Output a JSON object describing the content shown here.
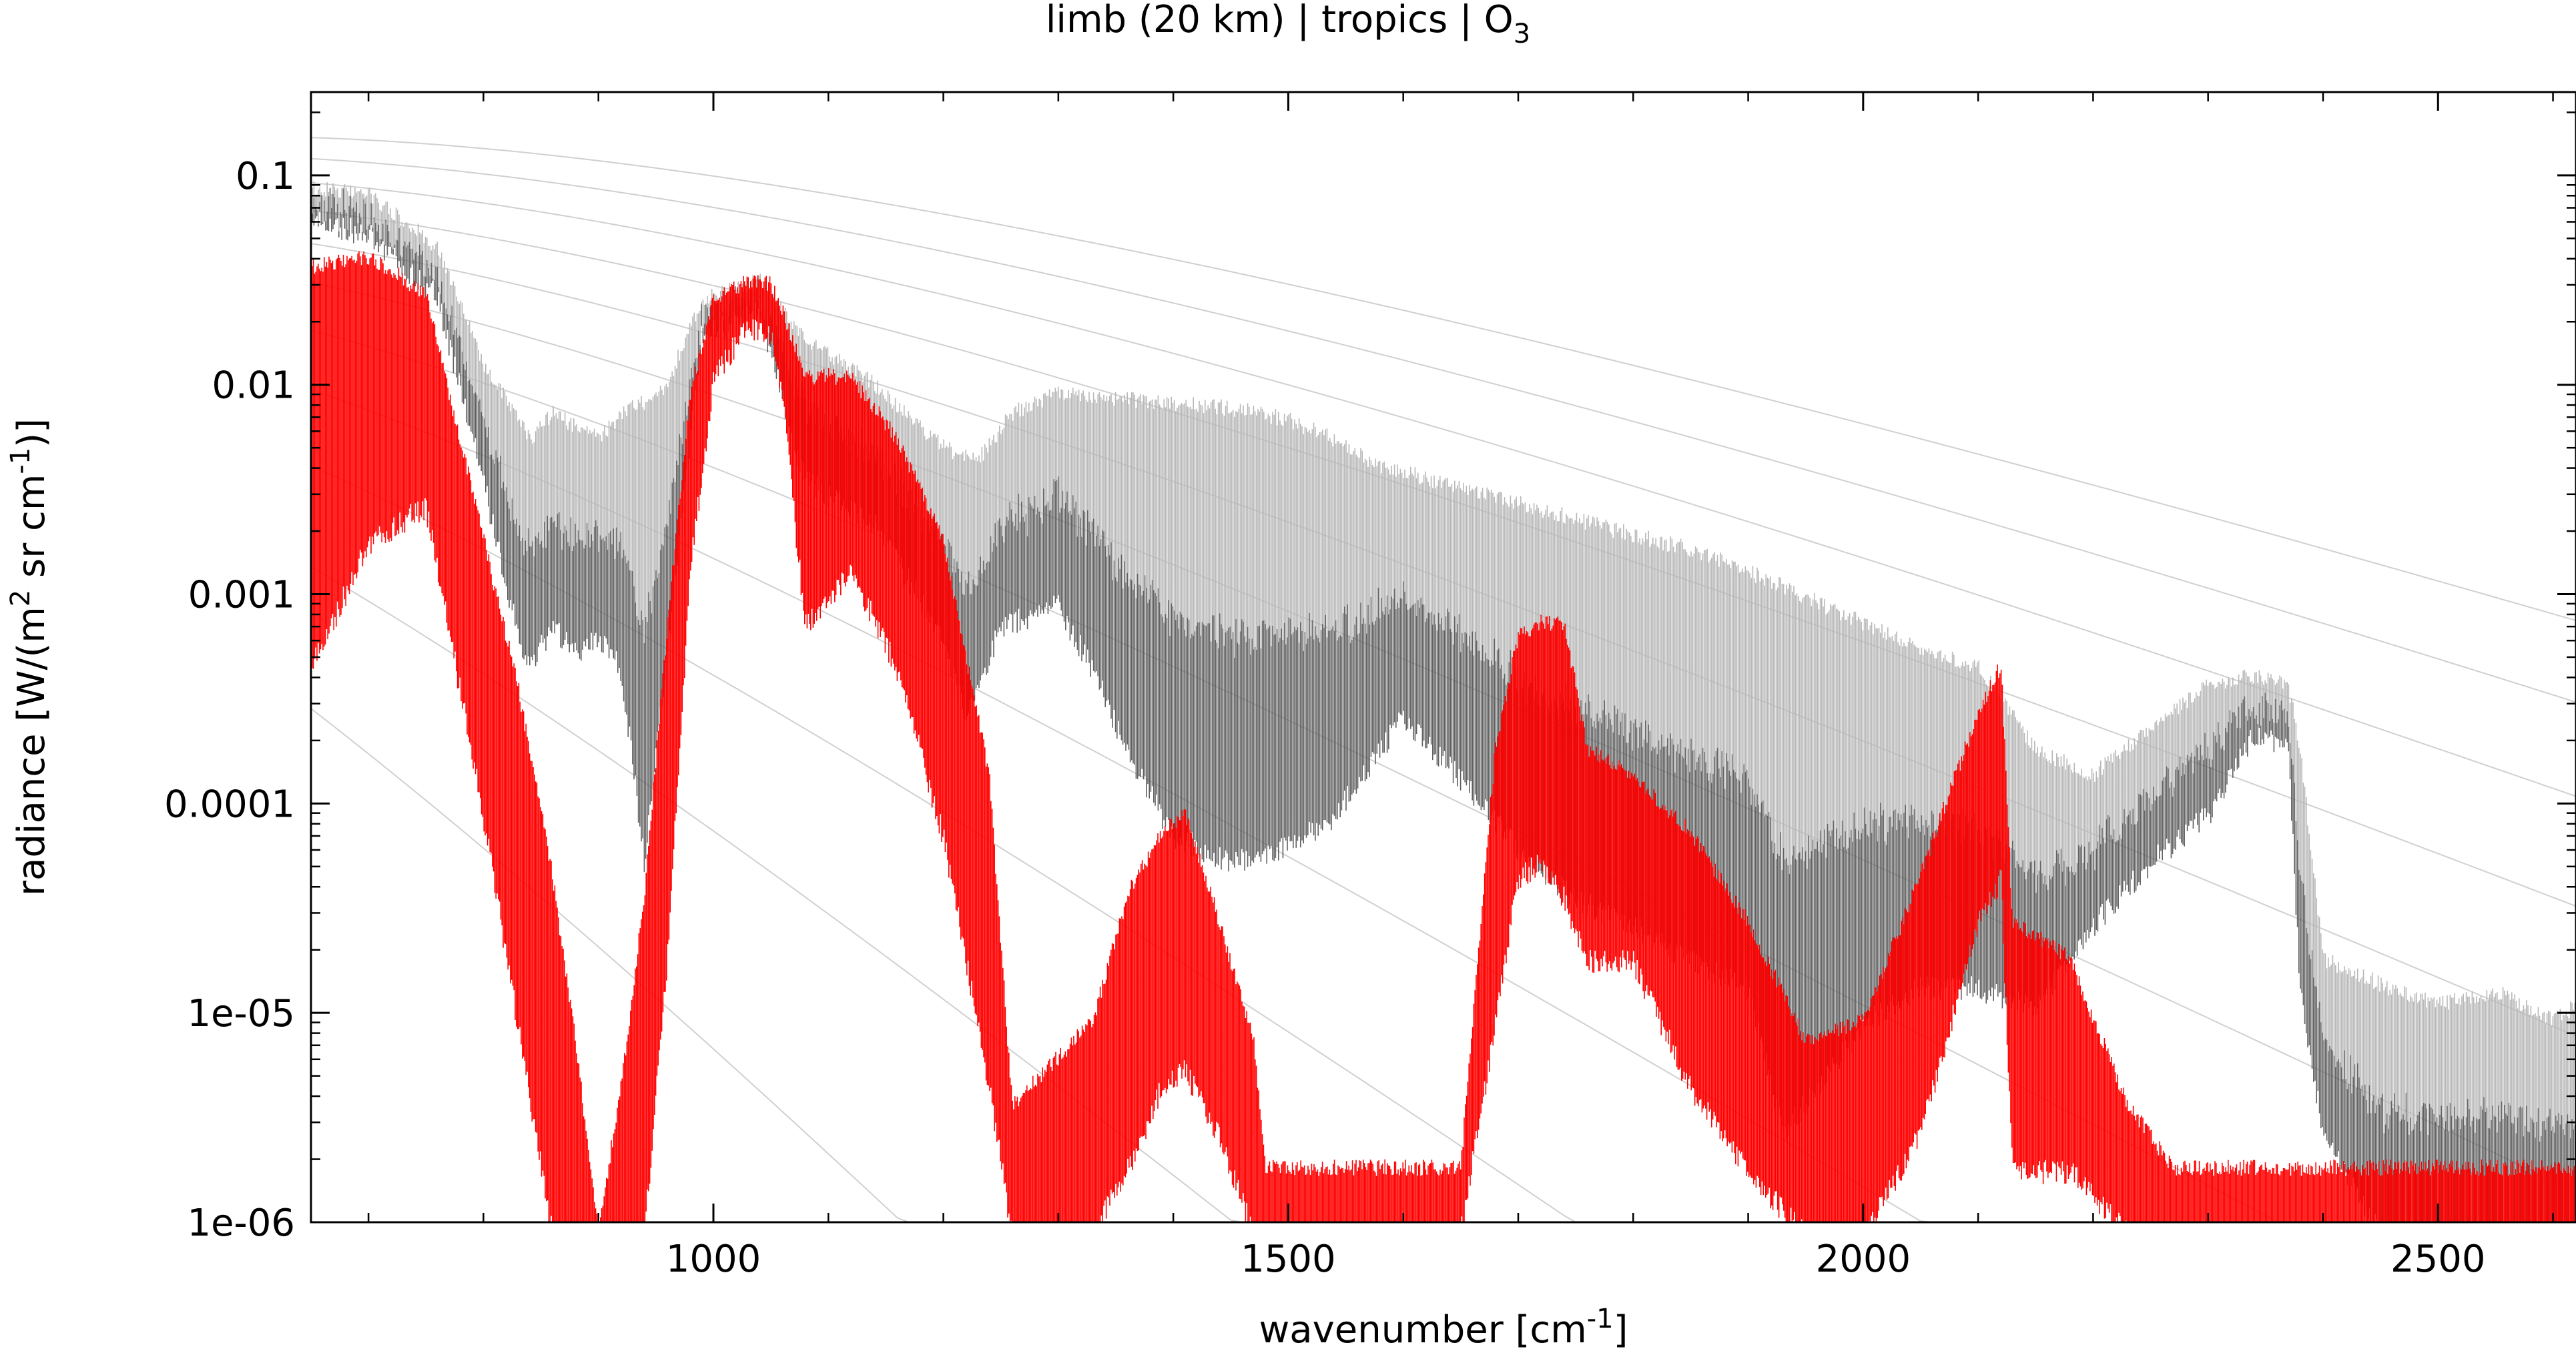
{
  "chart_data": {
    "type": "line",
    "title_parts": {
      "prefix": "limb (20 km) | tropics | O",
      "subscript": "3"
    },
    "xlabel_parts": {
      "prefix": "wavenumber [cm",
      "superscript": "-1",
      "suffix": "]"
    },
    "ylabel_parts": {
      "prefix": "radiance [W/(m",
      "sup1": "2",
      "middle": " sr cm",
      "sup2": "-1",
      "suffix": ")]"
    },
    "xlim": [
      650,
      2620
    ],
    "ylim": [
      1e-06,
      0.25
    ],
    "yscale": "log",
    "grid": false,
    "x_ticks": [
      {
        "value": 1000,
        "label": "1000"
      },
      {
        "value": 1500,
        "label": "1500"
      },
      {
        "value": 2000,
        "label": "2000"
      },
      {
        "value": 2500,
        "label": "2500"
      }
    ],
    "y_ticks": [
      {
        "value": 0.1,
        "label": "0.1"
      },
      {
        "value": 0.01,
        "label": "0.01"
      },
      {
        "value": 0.001,
        "label": "0.001"
      },
      {
        "value": 0.0001,
        "label": "0.0001"
      },
      {
        "value": 1e-05,
        "label": "1e-05"
      },
      {
        "value": 1e-06,
        "label": "1e-06"
      }
    ],
    "colors": {
      "ozone": "#ff0000",
      "total_dark": "#606060",
      "total_light": "#b8b8b8",
      "reference": "#d0d0d0"
    },
    "series": [
      {
        "role": "total-radiance-upper",
        "color": "#b8b8b8",
        "x": [
          650,
          700,
          760,
          800,
          840,
          860,
          880,
          900,
          920,
          940,
          960,
          990,
          1040,
          1080,
          1140,
          1200,
          1230,
          1260,
          1300,
          1350,
          1400,
          1450,
          1500,
          1540,
          1580,
          1600,
          1650,
          1700,
          1750,
          1800,
          1850,
          1900,
          1930,
          1960,
          2000,
          2050,
          2100,
          2150,
          2200,
          2250,
          2300,
          2340,
          2370,
          2380,
          2400,
          2450,
          2500,
          2550,
          2600,
          2620
        ],
        "y": [
          0.095,
          0.09,
          0.05,
          0.014,
          0.006,
          0.008,
          0.007,
          0.006,
          0.008,
          0.009,
          0.011,
          0.028,
          0.035,
          0.018,
          0.011,
          0.0055,
          0.0048,
          0.008,
          0.01,
          0.0095,
          0.009,
          0.0085,
          0.0075,
          0.006,
          0.0045,
          0.0042,
          0.0035,
          0.003,
          0.0025,
          0.0021,
          0.0018,
          0.0014,
          0.0012,
          0.001,
          0.0008,
          0.0006,
          0.0005,
          0.0002,
          0.00015,
          0.00025,
          0.0004,
          0.00045,
          0.0004,
          0.0002,
          2e-05,
          1.5e-05,
          1.2e-05,
          1.4e-05,
          1e-05,
          1.2e-05
        ]
      },
      {
        "role": "total-radiance-lower",
        "color": "#606060",
        "x": [
          650,
          700,
          760,
          800,
          820,
          840,
          860,
          880,
          900,
          920,
          940,
          960,
          990,
          1040,
          1080,
          1140,
          1200,
          1220,
          1250,
          1300,
          1330,
          1360,
          1400,
          1450,
          1500,
          1540,
          1580,
          1600,
          1650,
          1700,
          1750,
          1800,
          1850,
          1900,
          1930,
          1960,
          2000,
          2050,
          2100,
          2150,
          2200,
          2250,
          2300,
          2340,
          2370,
          2380,
          2400,
          2450,
          2500,
          2550,
          2600,
          2620
        ],
        "y": [
          0.07,
          0.06,
          0.03,
          0.004,
          0.0012,
          0.0005,
          0.0008,
          0.0006,
          0.0007,
          0.0005,
          6e-05,
          0.0006,
          0.02,
          0.025,
          0.004,
          0.0025,
          0.0007,
          0.0003,
          0.0008,
          0.001,
          0.0005,
          0.0002,
          8e-05,
          6e-05,
          7e-05,
          0.0001,
          0.0002,
          0.0003,
          0.00015,
          7e-05,
          4e-05,
          3e-05,
          2e-05,
          1.5e-05,
          3e-06,
          5e-06,
          1e-05,
          1.5e-05,
          1.5e-05,
          1.2e-05,
          3e-05,
          6e-05,
          0.0001,
          0.00025,
          0.0002,
          1.5e-05,
          3e-06,
          1e-06,
          1e-06,
          1e-06,
          1e-06,
          1e-06
        ]
      },
      {
        "role": "ozone-upper",
        "color": "#ff0000",
        "x": [
          650,
          700,
          750,
          800,
          830,
          860,
          880,
          900,
          920,
          940,
          960,
          980,
          1000,
          1030,
          1050,
          1060,
          1080,
          1120,
          1160,
          1200,
          1240,
          1260,
          1330,
          1360,
          1390,
          1410,
          1440,
          1470,
          1480,
          1650,
          1680,
          1700,
          1720,
          1740,
          1760,
          1800,
          1850,
          1900,
          1950,
          2000,
          2050,
          2100,
          2120,
          2130,
          2180,
          2230,
          2270
        ],
        "y": [
          0.04,
          0.045,
          0.03,
          0.002,
          0.0004,
          5e-05,
          8e-06,
          1e-06,
          5e-06,
          4e-05,
          0.0008,
          0.01,
          0.028,
          0.034,
          0.033,
          0.025,
          0.012,
          0.012,
          0.006,
          0.002,
          0.00015,
          4e-06,
          1e-05,
          4e-05,
          8e-05,
          0.0001,
          3e-05,
          8e-06,
          2e-06,
          2e-06,
          0.0002,
          0.0007,
          0.0008,
          0.0008,
          0.0002,
          0.00015,
          8e-05,
          3e-05,
          8e-06,
          1e-05,
          5e-05,
          0.0003,
          0.0005,
          3e-05,
          2e-05,
          4e-06,
          2e-06
        ]
      },
      {
        "role": "ozone-lower",
        "color": "#ff0000",
        "x": [
          650,
          700,
          750,
          800,
          830,
          860,
          880,
          900,
          920,
          940,
          960,
          980,
          1000,
          1030,
          1050,
          1060,
          1080,
          1120,
          1160,
          1200,
          1240,
          1260,
          1330,
          1360,
          1390,
          1410,
          1440,
          1470,
          1480,
          1650,
          1680,
          1700,
          1720,
          1740,
          1760,
          1800,
          1850,
          1900,
          1950,
          2000,
          2050,
          2100,
          2120,
          2130,
          2180,
          2230,
          2270
        ],
        "y": [
          0.0005,
          0.002,
          0.003,
          0.0001,
          1e-05,
          1e-06,
          1e-06,
          1e-06,
          1e-06,
          1e-06,
          2e-05,
          0.0015,
          0.012,
          0.022,
          0.02,
          0.01,
          0.0008,
          0.0015,
          0.0005,
          8e-05,
          5e-06,
          1e-06,
          1e-06,
          2e-06,
          5e-06,
          6e-06,
          3e-06,
          1e-06,
          1e-06,
          1e-06,
          1e-05,
          5e-05,
          6e-05,
          4e-05,
          2e-05,
          2e-05,
          5e-06,
          2e-06,
          1e-06,
          1e-06,
          3e-06,
          3e-05,
          5e-05,
          2e-06,
          2e-06,
          1e-06,
          1e-06
        ]
      }
    ]
  }
}
